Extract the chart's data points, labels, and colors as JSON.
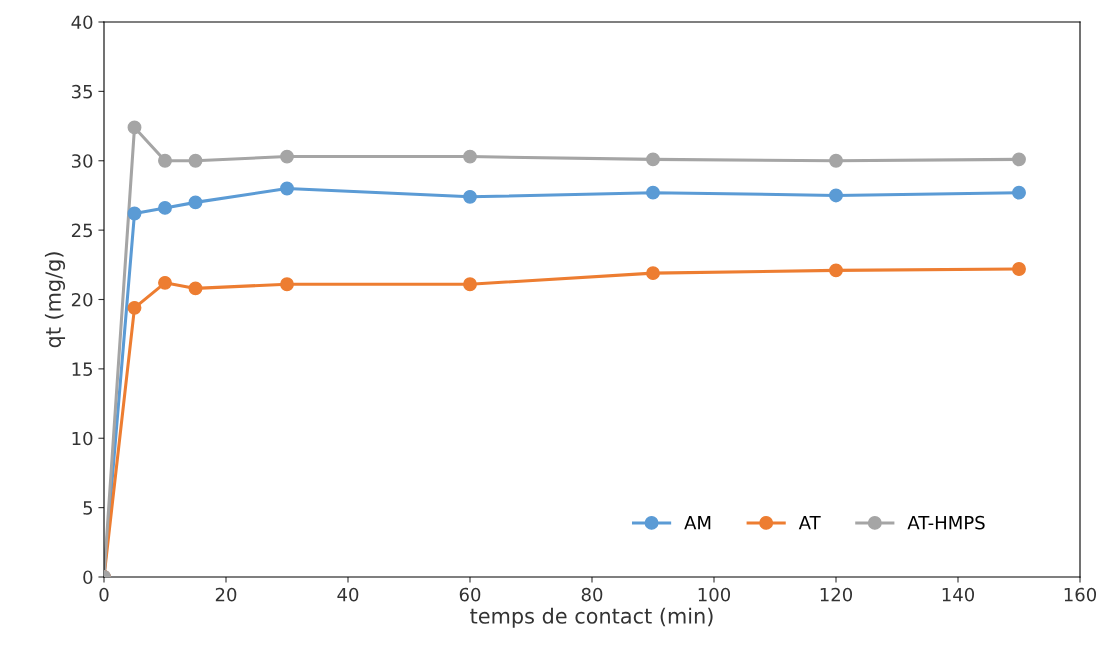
{
  "chart_data": {
    "type": "line",
    "xlabel": "temps de contact (min)",
    "ylabel": "qt (mg/g)",
    "x": [
      0,
      5,
      10,
      15,
      30,
      60,
      90,
      120,
      150
    ],
    "series": [
      {
        "name": "AM",
        "color": "#5b9bd5",
        "values": [
          0,
          26.2,
          26.6,
          27.0,
          28.0,
          27.4,
          27.7,
          27.5,
          27.7
        ]
      },
      {
        "name": "AT",
        "color": "#ed7d31",
        "values": [
          0,
          19.4,
          21.2,
          20.8,
          21.1,
          21.1,
          21.9,
          22.1,
          22.2
        ]
      },
      {
        "name": "AT-HMPS",
        "color": "#a5a5a5",
        "values": [
          0,
          32.4,
          30.0,
          30.0,
          30.3,
          30.3,
          30.1,
          30.0,
          30.1
        ]
      }
    ],
    "xlim": [
      0,
      160
    ],
    "xticks": [
      0,
      20,
      40,
      60,
      80,
      100,
      120,
      140,
      160
    ],
    "ylim": [
      0,
      40
    ],
    "yticks": [
      0,
      5,
      10,
      15,
      20,
      25,
      30,
      35,
      40
    ],
    "grid": false,
    "legend": "bottom right",
    "marker": "circle",
    "line_style": "solid"
  }
}
